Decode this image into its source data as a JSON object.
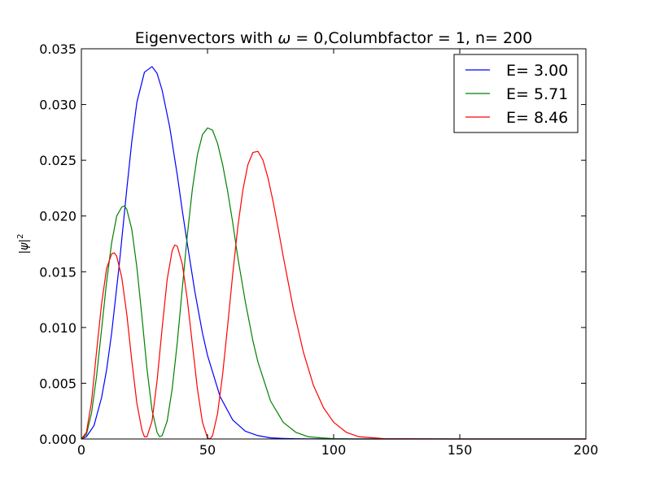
{
  "chart_data": {
    "type": "line",
    "title_parts": {
      "prefix": "Eigenvectors with ",
      "omega": "ω",
      "suffix": " = 0,Columbfactor = 1, n= 200"
    },
    "ylabel_parts": {
      "psi": "ψ",
      "exp": "2"
    },
    "xlabel": "",
    "xlim": [
      0,
      200
    ],
    "ylim": [
      0,
      0.035
    ],
    "x_ticks": [
      0,
      50,
      100,
      150,
      200
    ],
    "x_tick_labels": [
      "0",
      "50",
      "100",
      "150",
      "200"
    ],
    "y_ticks": [
      0,
      0.005,
      0.01,
      0.015,
      0.02,
      0.025,
      0.03,
      0.035
    ],
    "y_tick_labels": [
      "0.000",
      "0.005",
      "0.010",
      "0.015",
      "0.020",
      "0.025",
      "0.030",
      "0.035"
    ],
    "grid": false,
    "legend_position": "top-right",
    "series": [
      {
        "name": "E= 3.00",
        "color": "#0000ff",
        "x": [
          0,
          2,
          5,
          8,
          10,
          12,
          15,
          18,
          20,
          22,
          25,
          28,
          30,
          32,
          35,
          38,
          40,
          42,
          45,
          48,
          50,
          55,
          60,
          65,
          70,
          75,
          80,
          85,
          90,
          100,
          110,
          120,
          150,
          200
        ],
        "y": [
          0,
          0.0002,
          0.0012,
          0.0037,
          0.0062,
          0.0095,
          0.0156,
          0.0224,
          0.0267,
          0.0302,
          0.0329,
          0.0334,
          0.0328,
          0.0313,
          0.028,
          0.0237,
          0.0205,
          0.0175,
          0.0132,
          0.0095,
          0.0075,
          0.0038,
          0.0017,
          0.0007,
          0.0003,
          0.0001,
          5e-05,
          2e-05,
          1e-05,
          0,
          0,
          0,
          0,
          0
        ]
      },
      {
        "name": "E= 5.71",
        "color": "#008000",
        "x": [
          0,
          2,
          4,
          6,
          8,
          10,
          12,
          14,
          16,
          17,
          18,
          20,
          22,
          24,
          26,
          28,
          30,
          31,
          32,
          34,
          36,
          38,
          40,
          42,
          44,
          46,
          48,
          50,
          52,
          54,
          56,
          58,
          60,
          62,
          65,
          68,
          70,
          75,
          80,
          85,
          90,
          95,
          100,
          110,
          120,
          150,
          200
        ],
        "y": [
          0,
          0.0004,
          0.0023,
          0.0056,
          0.0098,
          0.0141,
          0.0176,
          0.02,
          0.0208,
          0.0209,
          0.0206,
          0.0188,
          0.0154,
          0.011,
          0.0063,
          0.0026,
          0.0006,
          0.0002,
          0.0003,
          0.0016,
          0.0045,
          0.0086,
          0.0135,
          0.0183,
          0.0224,
          0.0255,
          0.0273,
          0.0279,
          0.0277,
          0.0265,
          0.0246,
          0.0222,
          0.0194,
          0.0163,
          0.0123,
          0.0088,
          0.0069,
          0.0034,
          0.0015,
          0.0006,
          0.0002,
          0.0001,
          3e-05,
          0,
          0,
          0,
          0
        ]
      },
      {
        "name": "E= 8.46",
        "color": "#ff0000",
        "x": [
          0,
          2,
          4,
          6,
          8,
          10,
          12,
          13,
          14,
          16,
          18,
          20,
          22,
          24,
          25,
          26,
          28,
          30,
          32,
          34,
          36,
          37,
          38,
          40,
          42,
          44,
          46,
          48,
          50,
          51,
          52,
          54,
          56,
          58,
          60,
          62,
          64,
          66,
          68,
          70,
          72,
          74,
          76,
          78,
          80,
          84,
          88,
          92,
          96,
          100,
          105,
          110,
          120,
          150,
          200
        ],
        "y": [
          0,
          0.0006,
          0.0033,
          0.0078,
          0.0121,
          0.0153,
          0.0166,
          0.0167,
          0.0164,
          0.0145,
          0.0112,
          0.007,
          0.0032,
          0.0008,
          0.0002,
          0.0002,
          0.0016,
          0.0052,
          0.0099,
          0.0143,
          0.0169,
          0.0174,
          0.0173,
          0.0157,
          0.0125,
          0.0085,
          0.0045,
          0.0015,
          0.0001,
          0,
          0.0003,
          0.0023,
          0.0058,
          0.0102,
          0.0148,
          0.019,
          0.0223,
          0.0246,
          0.0257,
          0.0258,
          0.025,
          0.0234,
          0.0213,
          0.0189,
          0.0164,
          0.0117,
          0.0078,
          0.0048,
          0.0028,
          0.0015,
          0.0006,
          0.0002,
          3e-05,
          0,
          0
        ]
      }
    ]
  }
}
